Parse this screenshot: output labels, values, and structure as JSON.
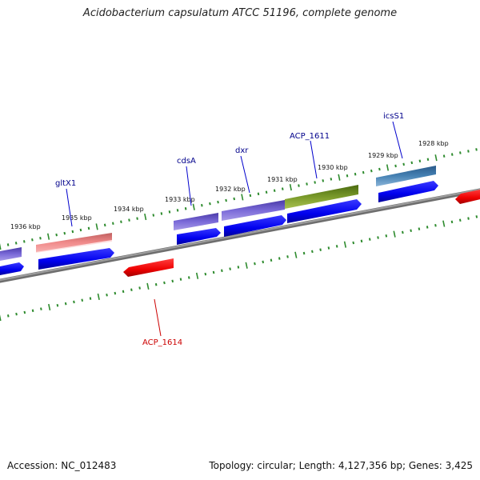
{
  "title": "Acidobacterium capsulatum ATCC 51196, complete genome",
  "footer": {
    "accession": "Accession: NC_012483",
    "stats": "Topology: circular; Length: 4,127,356 bp; Genes: 3,425"
  },
  "colors": {
    "backbone": "#8a8a8a",
    "ticks": "#2e8b2e",
    "cds_forward": "#0000ee",
    "cds_reverse": "#ee0000",
    "label_forward": "#00008b",
    "label_reverse": "#cc0000",
    "feature_gltX1": "#e87878",
    "feature_cdsA": "#6a5acd",
    "feature_dxr": "#7b68d8",
    "feature_ACP_1611": "#6b8e23",
    "feature_icsS1": "#4682b4"
  },
  "tick_labels": [
    "1936 kbp",
    "1935 kbp",
    "1934 kbp",
    "1933 kbp",
    "1932 kbp",
    "1931 kbp",
    "1930 kbp",
    "1929 kbp",
    "1928 kbp"
  ],
  "gene_labels": [
    {
      "name": "gltX1",
      "strand": "forward"
    },
    {
      "name": "cdsA",
      "strand": "forward"
    },
    {
      "name": "dxr",
      "strand": "forward"
    },
    {
      "name": "ACP_1611",
      "strand": "forward"
    },
    {
      "name": "icsS1",
      "strand": "forward"
    },
    {
      "name": "ACP_1614",
      "strand": "reverse"
    }
  ]
}
